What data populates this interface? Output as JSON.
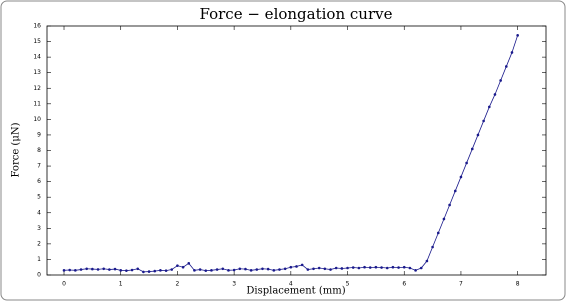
{
  "chart_data": {
    "type": "line",
    "title": "Force − elongation curve",
    "x_label": "Displacement (mm)",
    "y_label": "Force (μN)",
    "x": [
      0,
      0.1,
      0.2,
      0.3,
      0.4,
      0.5,
      0.6,
      0.7,
      0.8,
      0.9,
      1.0,
      1.1,
      1.2,
      1.3,
      1.4,
      1.5,
      1.6,
      1.7,
      1.8,
      1.9,
      2.0,
      2.1,
      2.2,
      2.3,
      2.4,
      2.5,
      2.6,
      2.7,
      2.8,
      2.9,
      3.0,
      3.1,
      3.2,
      3.3,
      3.4,
      3.5,
      3.6,
      3.7,
      3.8,
      3.9,
      4.0,
      4.1,
      4.2,
      4.3,
      4.4,
      4.5,
      4.6,
      4.7,
      4.8,
      4.9,
      5.0,
      5.1,
      5.2,
      5.3,
      5.4,
      5.5,
      5.6,
      5.7,
      5.8,
      5.9,
      6.0,
      6.1,
      6.2,
      6.3,
      6.4,
      6.5,
      6.6,
      6.7,
      6.8,
      6.9,
      7.0,
      7.1,
      7.2,
      7.3,
      7.4,
      7.5,
      7.6,
      7.7,
      7.8,
      7.9,
      8.0
    ],
    "series": [
      {
        "color": "#1a1a8c",
        "values": [
          0.3,
          0.32,
          0.3,
          0.35,
          0.4,
          0.38,
          0.36,
          0.4,
          0.35,
          0.38,
          0.3,
          0.28,
          0.32,
          0.4,
          0.2,
          0.22,
          0.25,
          0.3,
          0.28,
          0.35,
          0.6,
          0.5,
          0.75,
          0.3,
          0.35,
          0.28,
          0.3,
          0.35,
          0.4,
          0.3,
          0.32,
          0.4,
          0.38,
          0.3,
          0.35,
          0.4,
          0.38,
          0.3,
          0.35,
          0.4,
          0.5,
          0.55,
          0.65,
          0.35,
          0.4,
          0.45,
          0.4,
          0.35,
          0.45,
          0.42,
          0.45,
          0.48,
          0.45,
          0.5,
          0.48,
          0.5,
          0.48,
          0.45,
          0.5,
          0.48,
          0.5,
          0.45,
          0.3,
          0.45,
          0.9,
          1.8,
          2.7,
          3.6,
          4.5,
          5.4,
          6.3,
          7.2,
          8.1,
          9.0,
          9.9,
          10.8,
          11.6,
          12.5,
          13.4,
          14.3,
          15.4
        ]
      }
    ],
    "xlim": [
      -0.3,
      8.5
    ],
    "xticks": [
      0,
      1,
      2,
      3,
      4,
      5,
      6,
      7,
      8
    ],
    "ylim": [
      0,
      16
    ],
    "yticks": [
      0,
      1,
      2,
      3,
      4,
      5,
      6,
      7,
      8,
      9,
      10,
      11,
      12,
      13,
      14,
      15,
      16
    ],
    "grid": false
  }
}
